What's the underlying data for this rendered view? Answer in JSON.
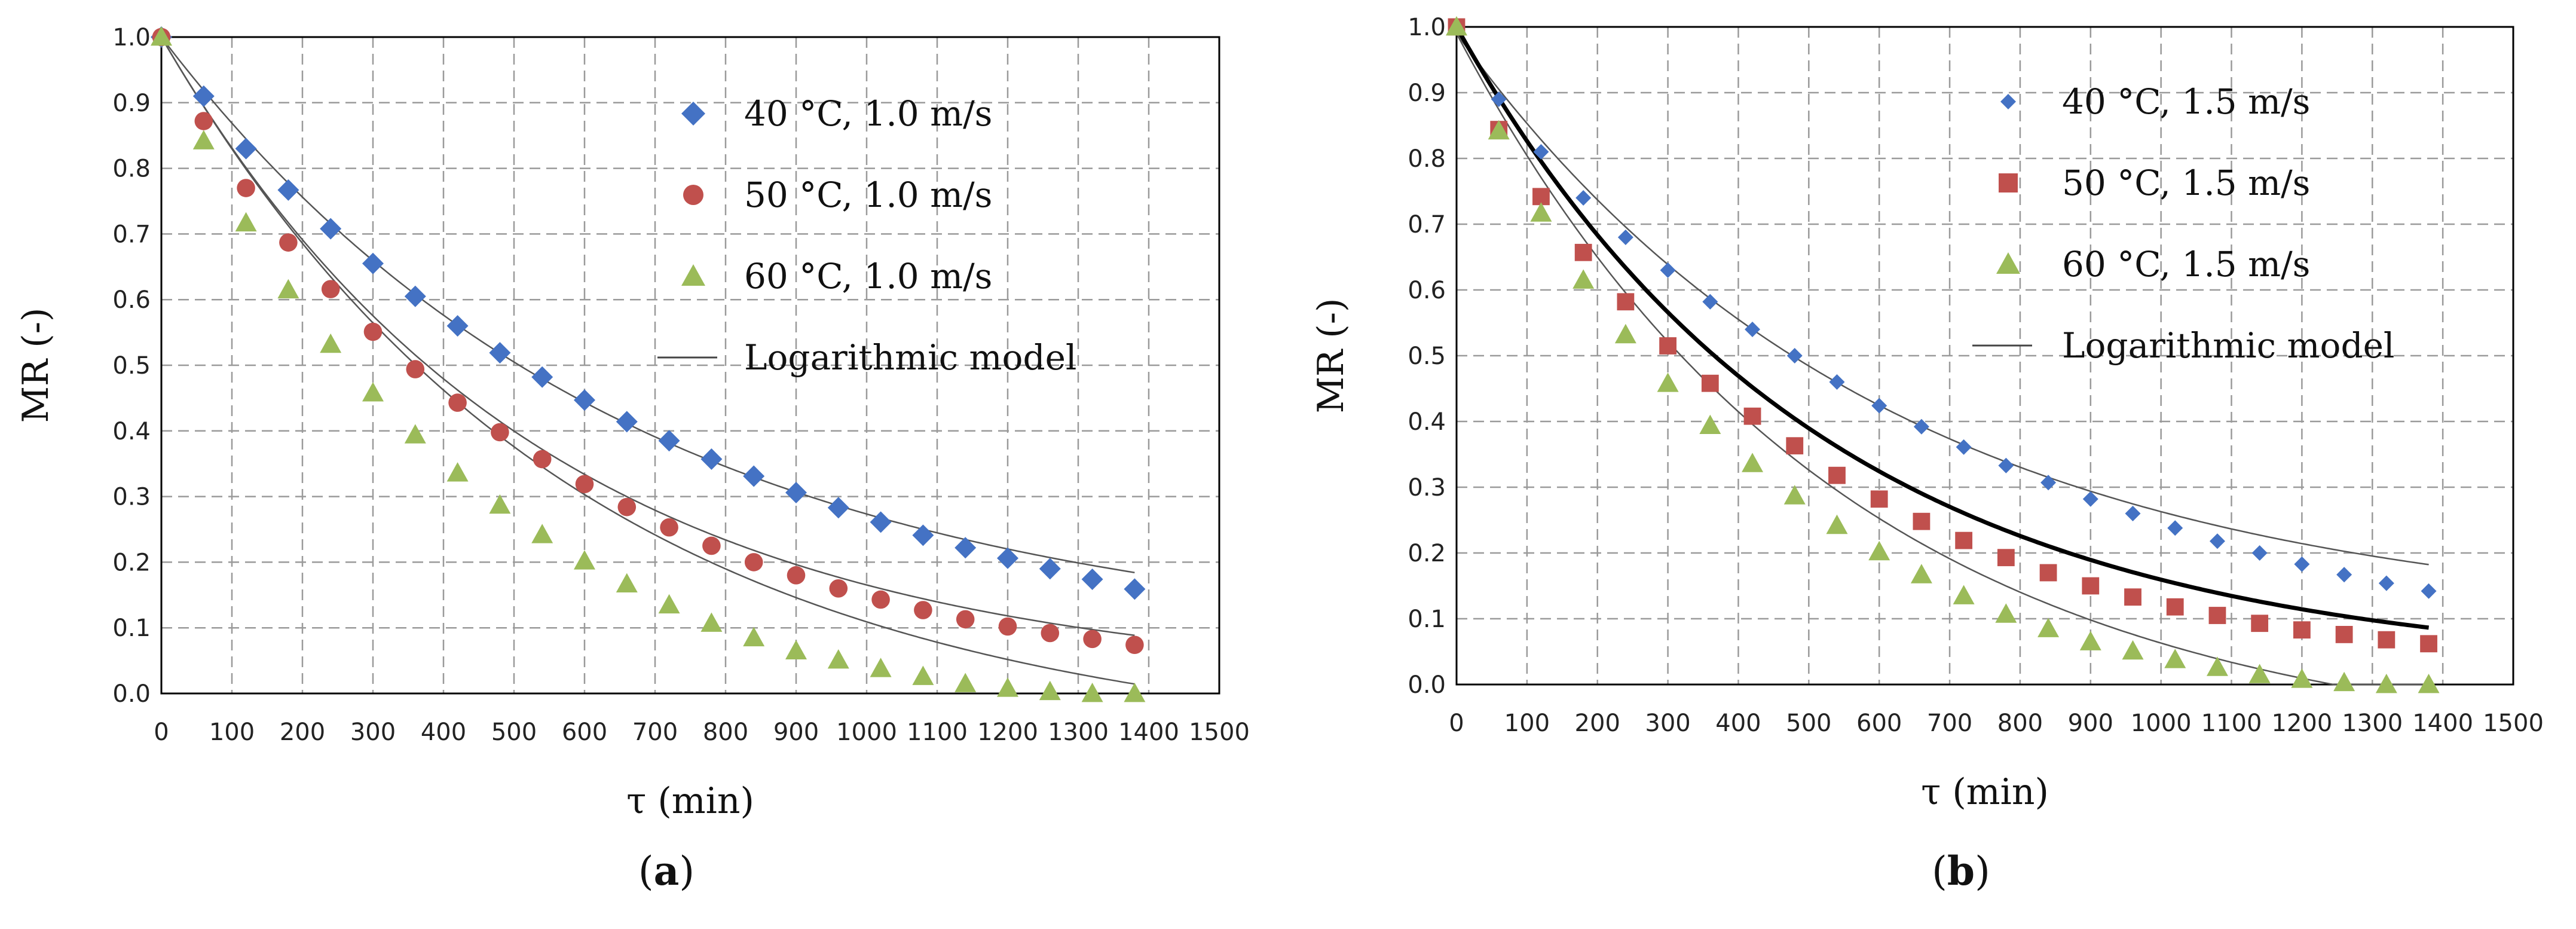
{
  "chart_data": [
    {
      "type": "scatter",
      "panel_label": "(a)",
      "panel_letter": "a",
      "xlabel": "τ (min)",
      "ylabel": "MR (-)",
      "xlim": [
        0,
        1500
      ],
      "ylim": [
        0.0,
        1.0
      ],
      "xticks": [
        "0",
        "100",
        "200",
        "300",
        "400",
        "500",
        "600",
        "700",
        "800",
        "900",
        "1000",
        "1100",
        "1200",
        "1300",
        "1400",
        "1500"
      ],
      "yticks": [
        "0.0",
        "0.1",
        "0.2",
        "0.3",
        "0.4",
        "0.5",
        "0.6",
        "0.7",
        "0.8",
        "0.9",
        "1.0"
      ],
      "grid": true,
      "legend_position": "top-right",
      "x": [
        0,
        60,
        120,
        180,
        240,
        300,
        360,
        420,
        480,
        540,
        600,
        660,
        720,
        780,
        840,
        900,
        960,
        1020,
        1080,
        1140,
        1200,
        1260,
        1320,
        1380
      ],
      "series": [
        {
          "name": "40 °C, 1.0 m/s",
          "marker": "diamond",
          "color": "#4472C4",
          "values": [
            1.0,
            0.91,
            0.83,
            0.767,
            0.708,
            0.655,
            0.605,
            0.56,
            0.519,
            0.482,
            0.447,
            0.414,
            0.385,
            0.357,
            0.331,
            0.306,
            0.283,
            0.261,
            0.241,
            0.222,
            0.206,
            0.19,
            0.174,
            0.159
          ]
        },
        {
          "name": "50 °C, 1.0 m/s",
          "marker": "circle",
          "color": "#C0504D",
          "values": [
            1.0,
            0.872,
            0.77,
            0.687,
            0.616,
            0.551,
            0.494,
            0.443,
            0.398,
            0.357,
            0.319,
            0.284,
            0.253,
            0.225,
            0.2,
            0.18,
            0.16,
            0.143,
            0.127,
            0.113,
            0.102,
            0.092,
            0.083,
            0.074
          ]
        },
        {
          "name": "60 °C, 1.0 m/s",
          "marker": "triangle",
          "color": "#9BBB59",
          "values": [
            1.0,
            0.842,
            0.717,
            0.615,
            0.532,
            0.458,
            0.394,
            0.336,
            0.287,
            0.242,
            0.202,
            0.167,
            0.135,
            0.107,
            0.085,
            0.065,
            0.051,
            0.038,
            0.026,
            0.015,
            0.008,
            0.003,
            0.0,
            0.0
          ]
        }
      ],
      "model_legend": "Logarithmic model",
      "model_curves": [
        {
          "a": 0.93,
          "k": 0.00152,
          "c": 0.07
        },
        {
          "a": 0.985,
          "k": 0.00188,
          "c": 0.015
        },
        {
          "a": 1.09,
          "k": 0.0017,
          "c": -0.09
        }
      ]
    },
    {
      "type": "scatter",
      "panel_label": "(b)",
      "panel_letter": "b",
      "xlabel": "τ (min)",
      "ylabel": "MR (-)",
      "xlim": [
        0,
        1500
      ],
      "ylim": [
        0.0,
        1.0
      ],
      "xticks": [
        "0",
        "100",
        "200",
        "300",
        "400",
        "500",
        "600",
        "700",
        "800",
        "900",
        "1000",
        "1100",
        "1200",
        "1300",
        "1400",
        "1500"
      ],
      "yticks": [
        "0.0",
        "0.1",
        "0.2",
        "0.3",
        "0.4",
        "0.5",
        "0.6",
        "0.7",
        "0.8",
        "0.9",
        "1.0"
      ],
      "grid": true,
      "legend_position": "top-right",
      "x": [
        0,
        60,
        120,
        180,
        240,
        300,
        360,
        420,
        480,
        540,
        600,
        660,
        720,
        780,
        840,
        900,
        960,
        1020,
        1080,
        1140,
        1200,
        1260,
        1320,
        1380
      ],
      "series": [
        {
          "name": "40 °C, 1.5 m/s",
          "marker": "diamond",
          "color": "#4472C4",
          "values": [
            1.0,
            0.89,
            0.81,
            0.74,
            0.68,
            0.63,
            0.582,
            0.54,
            0.5,
            0.46,
            0.424,
            0.392,
            0.361,
            0.333,
            0.307,
            0.282,
            0.26,
            0.238,
            0.218,
            0.2,
            0.183,
            0.167,
            0.154,
            0.142
          ]
        },
        {
          "name": "50 °C, 1.5 m/s",
          "marker": "square",
          "color": "#C0504D",
          "values": [
            1.0,
            0.844,
            0.742,
            0.657,
            0.582,
            0.515,
            0.458,
            0.408,
            0.363,
            0.318,
            0.282,
            0.248,
            0.219,
            0.193,
            0.17,
            0.15,
            0.133,
            0.118,
            0.105,
            0.093,
            0.083,
            0.076,
            0.068,
            0.062
          ]
        },
        {
          "name": "60 °C, 1.5 m/s",
          "marker": "triangle",
          "color": "#9BBB59",
          "values": [
            1.0,
            0.842,
            0.717,
            0.615,
            0.532,
            0.458,
            0.394,
            0.336,
            0.287,
            0.242,
            0.202,
            0.167,
            0.135,
            0.107,
            0.085,
            0.065,
            0.051,
            0.038,
            0.026,
            0.015,
            0.008,
            0.003,
            0.0,
            0.0
          ]
        }
      ],
      "model_legend": "Logarithmic model",
      "model_curves": [
        {
          "a": 0.9,
          "k": 0.00165,
          "c": 0.09,
          "bold": false
        },
        {
          "a": 0.98,
          "k": 0.00195,
          "c": 0.02,
          "bold": true
        },
        {
          "a": 1.1,
          "k": 0.00185,
          "c": -0.11,
          "bold": false
        }
      ]
    }
  ]
}
